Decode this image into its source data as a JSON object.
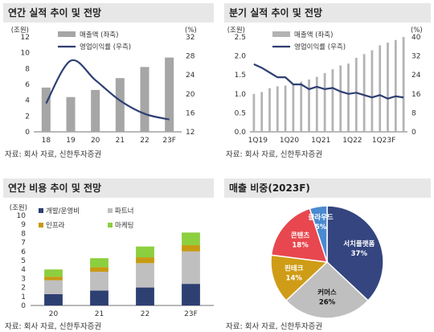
{
  "source": "자료: 회사 자료, 신한투자증권",
  "chart_data": [
    {
      "type": "bar",
      "title": "연간 실적 추이 및 전망",
      "categories": [
        "18",
        "19",
        "20",
        "21",
        "22",
        "23F"
      ],
      "left_unit": "(조원)",
      "right_unit": "(%)",
      "ylim": [
        0,
        12
      ],
      "y2lim": [
        12,
        32
      ],
      "yticks": [
        0,
        2,
        4,
        6,
        8,
        10,
        12
      ],
      "y2ticks": [
        12,
        16,
        20,
        24,
        28,
        32
      ],
      "grid": false,
      "legend_position": "top-center",
      "series": [
        {
          "name": "매출액 (좌축)",
          "kind": "bar",
          "axis": "left",
          "color": "#a6a6a6",
          "values": [
            5.6,
            4.4,
            5.3,
            6.8,
            8.2,
            9.4
          ]
        },
        {
          "name": "영업이익률 (우측)",
          "kind": "line",
          "axis": "right",
          "color": "#2e3f72",
          "values": [
            18.0,
            27.0,
            22.9,
            18.6,
            15.8,
            14.6
          ]
        }
      ]
    },
    {
      "type": "bar",
      "title": "분기 실적 추이 및 전망",
      "categories": [
        "1Q19",
        "2Q19",
        "3Q19",
        "4Q19",
        "1Q20",
        "2Q20",
        "3Q20",
        "4Q20",
        "1Q21",
        "2Q21",
        "3Q21",
        "4Q21",
        "1Q22",
        "2Q22",
        "3Q22",
        "4Q22",
        "1Q23",
        "2Q23",
        "3Q23",
        "4Q23"
      ],
      "xticklabels": [
        "1Q19",
        "1Q20",
        "1Q21",
        "1Q22",
        "1Q23F"
      ],
      "left_unit": "(조원)",
      "right_unit": "(%)",
      "ylim": [
        0,
        2.5
      ],
      "y2lim": [
        0,
        40
      ],
      "yticks": [
        0.0,
        0.5,
        1.0,
        1.5,
        2.0,
        2.5
      ],
      "y2ticks": [
        0,
        8,
        16,
        24,
        32,
        40
      ],
      "grid": false,
      "legend_position": "top-center",
      "series": [
        {
          "name": "매출액 (좌축)",
          "kind": "bar",
          "axis": "left",
          "color": "#b3b3b3",
          "values": [
            1.0,
            1.05,
            1.15,
            1.2,
            1.22,
            1.25,
            1.32,
            1.38,
            1.45,
            1.55,
            1.65,
            1.75,
            1.8,
            1.95,
            2.05,
            2.15,
            2.28,
            2.35,
            2.42,
            2.5
          ]
        },
        {
          "name": "영업이익률 (우측)",
          "kind": "line",
          "axis": "right",
          "color": "#2e3f72",
          "values": [
            28.5,
            27.0,
            25.0,
            23.0,
            23.0,
            20.0,
            20.0,
            18.0,
            19.0,
            18.0,
            18.5,
            17.0,
            16.0,
            16.5,
            15.5,
            14.5,
            15.5,
            14.0,
            15.0,
            14.5
          ]
        }
      ]
    },
    {
      "type": "bar",
      "stacked": true,
      "title": "연간 비용 추이 및 전망",
      "categories": [
        "20",
        "21",
        "22",
        "23F"
      ],
      "left_unit": "(조원)",
      "ylim": [
        0,
        10
      ],
      "yticks": [
        0,
        1,
        2,
        3,
        4,
        5,
        6,
        7,
        8,
        9,
        10
      ],
      "grid": false,
      "legend_position": "top-left",
      "series": [
        {
          "name": "개발/운영비",
          "color": "#2e3f72",
          "values": [
            1.25,
            1.65,
            2.0,
            2.4
          ]
        },
        {
          "name": "파트너",
          "color": "#bfbfbf",
          "values": [
            1.55,
            2.1,
            2.7,
            3.6
          ]
        },
        {
          "name": "인프라",
          "color": "#c79a12",
          "values": [
            0.4,
            0.5,
            0.65,
            0.7
          ]
        },
        {
          "name": "마케팅",
          "color": "#8ccf3f",
          "values": [
            0.8,
            1.0,
            1.2,
            1.4
          ]
        }
      ]
    },
    {
      "type": "pie",
      "title": "매출 비중(2023F)",
      "slices": [
        {
          "label": "서치플랫폼",
          "pct": "37%",
          "value": 37,
          "color": "#34457f"
        },
        {
          "label": "커머스",
          "pct": "26%",
          "value": 26,
          "color": "#bfbfbf"
        },
        {
          "label": "핀테크",
          "pct": "14%",
          "value": 14,
          "color": "#cf9c17"
        },
        {
          "label": "콘텐츠",
          "pct": "18%",
          "value": 18,
          "color": "#e8474f"
        },
        {
          "label": "클라우드",
          "pct": "5%",
          "value": 5,
          "color": "#4a8ad0"
        }
      ]
    }
  ]
}
